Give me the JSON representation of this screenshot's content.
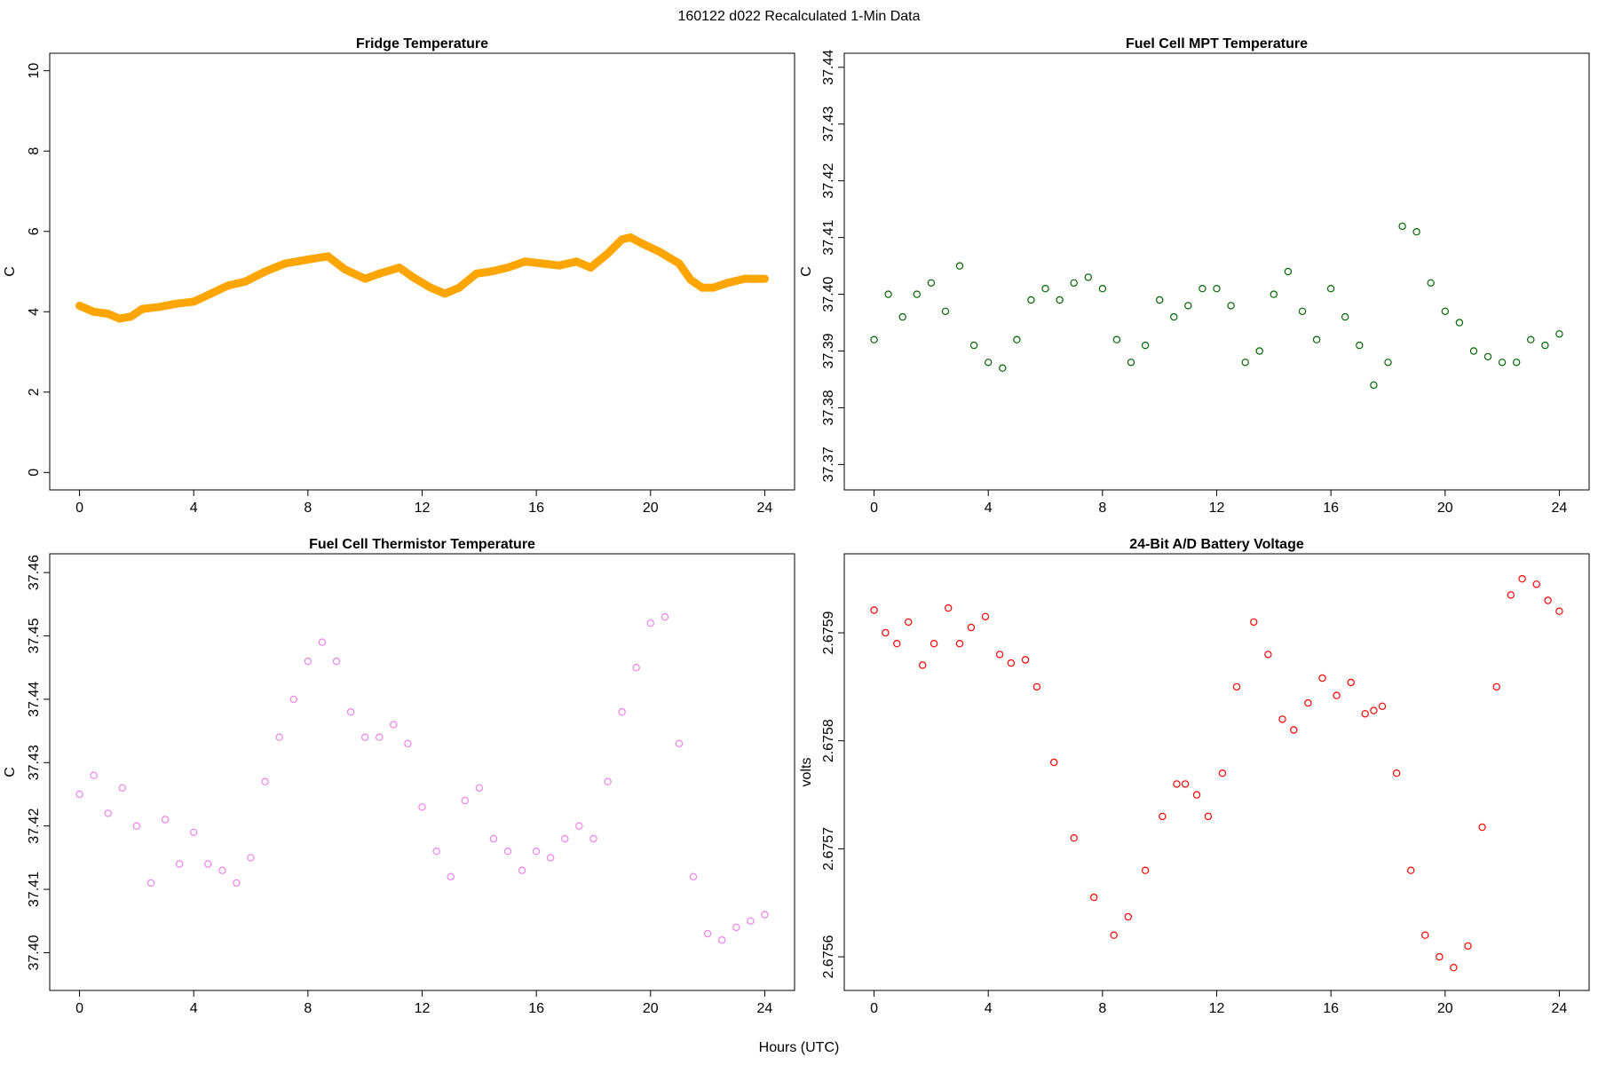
{
  "page_title": "160122   d022   Recalculated 1-Min Data",
  "xlabel": "Hours (UTC)",
  "x_ticks": [
    0,
    4,
    8,
    12,
    16,
    20,
    24
  ],
  "chart_data": [
    {
      "type": "line",
      "title": "Fridge Temperature",
      "ylabel": "C",
      "color": "#FFA500",
      "marker": "line",
      "xlim": [
        0,
        24
      ],
      "ylim": [
        0,
        10
      ],
      "y_ticks": [
        0,
        2,
        4,
        6,
        8,
        10
      ],
      "y_tick_labels": [
        "0",
        "2",
        "4",
        "6",
        "8",
        "10"
      ],
      "series": [
        {
          "name": "Fridge Temperature",
          "x": [
            0,
            0.5,
            1,
            1.4,
            1.8,
            2.2,
            2.8,
            3.4,
            4,
            4.6,
            5.2,
            5.8,
            6.5,
            7.2,
            8,
            8.7,
            9.3,
            10,
            10.5,
            11.2,
            11.7,
            12.3,
            12.8,
            13.3,
            13.9,
            14.4,
            15,
            15.6,
            16.2,
            16.8,
            17.4,
            17.9,
            18.5,
            19,
            19.3,
            19.7,
            20.3,
            21,
            21.4,
            21.8,
            22.2,
            22.7,
            23.3,
            24
          ],
          "y": [
            4.15,
            4.0,
            3.95,
            3.83,
            3.88,
            4.07,
            4.12,
            4.2,
            4.25,
            4.45,
            4.65,
            4.75,
            5.0,
            5.2,
            5.3,
            5.38,
            5.05,
            4.82,
            4.95,
            5.1,
            4.85,
            4.6,
            4.45,
            4.6,
            4.95,
            5.0,
            5.1,
            5.25,
            5.2,
            5.15,
            5.25,
            5.1,
            5.45,
            5.8,
            5.85,
            5.7,
            5.5,
            5.2,
            4.8,
            4.6,
            4.6,
            4.72,
            4.82,
            4.82
          ]
        }
      ]
    },
    {
      "type": "scatter",
      "title": "Fuel Cell MPT Temperature",
      "ylabel": "C",
      "color": "#006400",
      "marker": "circle",
      "xlim": [
        0,
        24
      ],
      "ylim": [
        37.3686,
        37.4394
      ],
      "y_ticks": [
        37.37,
        37.38,
        37.39,
        37.4,
        37.41,
        37.42,
        37.43,
        37.44
      ],
      "y_tick_labels": [
        "37.37",
        "37.38",
        "37.39",
        "37.40",
        "37.41",
        "37.42",
        "37.43",
        "37.44"
      ],
      "series": [
        {
          "name": "Fuel Cell MPT Temperature",
          "x": [
            0,
            0.5,
            1.0,
            1.5,
            2.0,
            2.5,
            3.0,
            3.5,
            4.0,
            4.5,
            5.0,
            5.5,
            6.0,
            6.5,
            7.0,
            7.5,
            8.0,
            8.5,
            9.0,
            9.5,
            10.0,
            10.5,
            11.0,
            11.5,
            12.0,
            12.5,
            13.0,
            13.5,
            14.0,
            14.5,
            15.0,
            15.5,
            16.0,
            16.5,
            17.0,
            17.5,
            18.0,
            18.5,
            19.0,
            19.5,
            20.0,
            20.5,
            21.0,
            21.5,
            22.0,
            22.5,
            23.0,
            23.5,
            24.0
          ],
          "y": [
            37.392,
            37.4,
            37.396,
            37.4,
            37.402,
            37.397,
            37.405,
            37.391,
            37.388,
            37.387,
            37.392,
            37.399,
            37.401,
            37.399,
            37.402,
            37.403,
            37.401,
            37.392,
            37.388,
            37.391,
            37.399,
            37.396,
            37.398,
            37.401,
            37.401,
            37.398,
            37.388,
            37.39,
            37.4,
            37.404,
            37.397,
            37.392,
            37.401,
            37.396,
            37.391,
            37.384,
            37.388,
            37.412,
            37.411,
            37.402,
            37.397,
            37.395,
            37.39,
            37.389,
            37.388,
            37.388,
            37.392,
            37.391,
            37.393
          ]
        }
      ]
    },
    {
      "type": "scatter",
      "title": "Fuel Cell Thermistor Temperature",
      "ylabel": "C",
      "color": "#EE82EE",
      "marker": "circle",
      "xlim": [
        0,
        24
      ],
      "ylim": [
        37.3968,
        37.4602
      ],
      "y_ticks": [
        37.4,
        37.41,
        37.42,
        37.43,
        37.44,
        37.45,
        37.46
      ],
      "y_tick_labels": [
        "37.40",
        "37.41",
        "37.42",
        "37.43",
        "37.44",
        "37.45",
        "37.46"
      ],
      "series": [
        {
          "name": "Fuel Cell Thermistor Temperature",
          "x": [
            0,
            0.5,
            1.0,
            1.5,
            2.0,
            2.5,
            3.0,
            3.5,
            4.0,
            4.5,
            5.0,
            5.5,
            6.0,
            6.5,
            7.0,
            7.5,
            8.0,
            8.5,
            9.0,
            9.5,
            10.0,
            10.5,
            11.0,
            11.5,
            12.0,
            12.5,
            13.0,
            13.5,
            14.0,
            14.5,
            15.0,
            15.5,
            16.0,
            16.5,
            17.0,
            17.5,
            18.0,
            18.5,
            19.0,
            19.5,
            20.0,
            20.5,
            21.0,
            21.5,
            22.0,
            22.5,
            23.0,
            23.5,
            24.0
          ],
          "y": [
            37.425,
            37.428,
            37.422,
            37.426,
            37.42,
            37.411,
            37.421,
            37.414,
            37.419,
            37.414,
            37.413,
            37.411,
            37.415,
            37.427,
            37.434,
            37.44,
            37.446,
            37.449,
            37.446,
            37.438,
            37.434,
            37.434,
            37.436,
            37.433,
            37.423,
            37.416,
            37.412,
            37.424,
            37.426,
            37.418,
            37.416,
            37.413,
            37.416,
            37.415,
            37.418,
            37.42,
            37.418,
            37.427,
            37.438,
            37.445,
            37.452,
            37.453,
            37.433,
            37.412,
            37.403,
            37.402,
            37.404,
            37.405,
            37.406
          ]
        }
      ]
    },
    {
      "type": "scatter",
      "title": "24-Bit A/D Battery Voltage",
      "ylabel": "volts",
      "color": "#FF0000",
      "marker": "circle",
      "xlim": [
        0,
        24
      ],
      "ylim": [
        2.675585,
        2.675957
      ],
      "y_ticks": [
        2.6756,
        2.6757,
        2.6758,
        2.6759
      ],
      "y_tick_labels": [
        "2.6756",
        "2.6757",
        "2.6758",
        "2.6759"
      ],
      "series": [
        {
          "name": "24-Bit A/D Battery Voltage",
          "x": [
            0,
            0.4,
            0.8,
            1.2,
            1.7,
            2.1,
            2.6,
            3.0,
            3.4,
            3.9,
            4.4,
            4.8,
            5.3,
            5.7,
            6.3,
            7.0,
            7.7,
            8.4,
            8.9,
            9.5,
            10.1,
            10.6,
            10.9,
            11.3,
            11.7,
            12.2,
            12.7,
            13.3,
            13.8,
            14.3,
            14.7,
            15.2,
            15.7,
            16.2,
            16.7,
            17.2,
            17.5,
            17.8,
            18.3,
            18.8,
            19.3,
            19.8,
            20.3,
            20.8,
            21.3,
            21.8,
            22.3,
            22.7,
            23.2,
            23.6,
            24.0
          ],
          "y": [
            2.675921,
            2.6759,
            2.67589,
            2.67591,
            2.67587,
            2.67589,
            2.675923,
            2.67589,
            2.675905,
            2.675915,
            2.67588,
            2.675872,
            2.675875,
            2.67585,
            2.67578,
            2.67571,
            2.675655,
            2.67562,
            2.675637,
            2.67568,
            2.67573,
            2.67576,
            2.67576,
            2.67575,
            2.67573,
            2.67577,
            2.67585,
            2.67591,
            2.67588,
            2.67582,
            2.67581,
            2.675835,
            2.675858,
            2.675842,
            2.675854,
            2.675825,
            2.675828,
            2.675832,
            2.67577,
            2.67568,
            2.67562,
            2.6756,
            2.67559,
            2.67561,
            2.67572,
            2.67585,
            2.675935,
            2.67595,
            2.675945,
            2.67593,
            2.67592
          ]
        }
      ]
    }
  ]
}
